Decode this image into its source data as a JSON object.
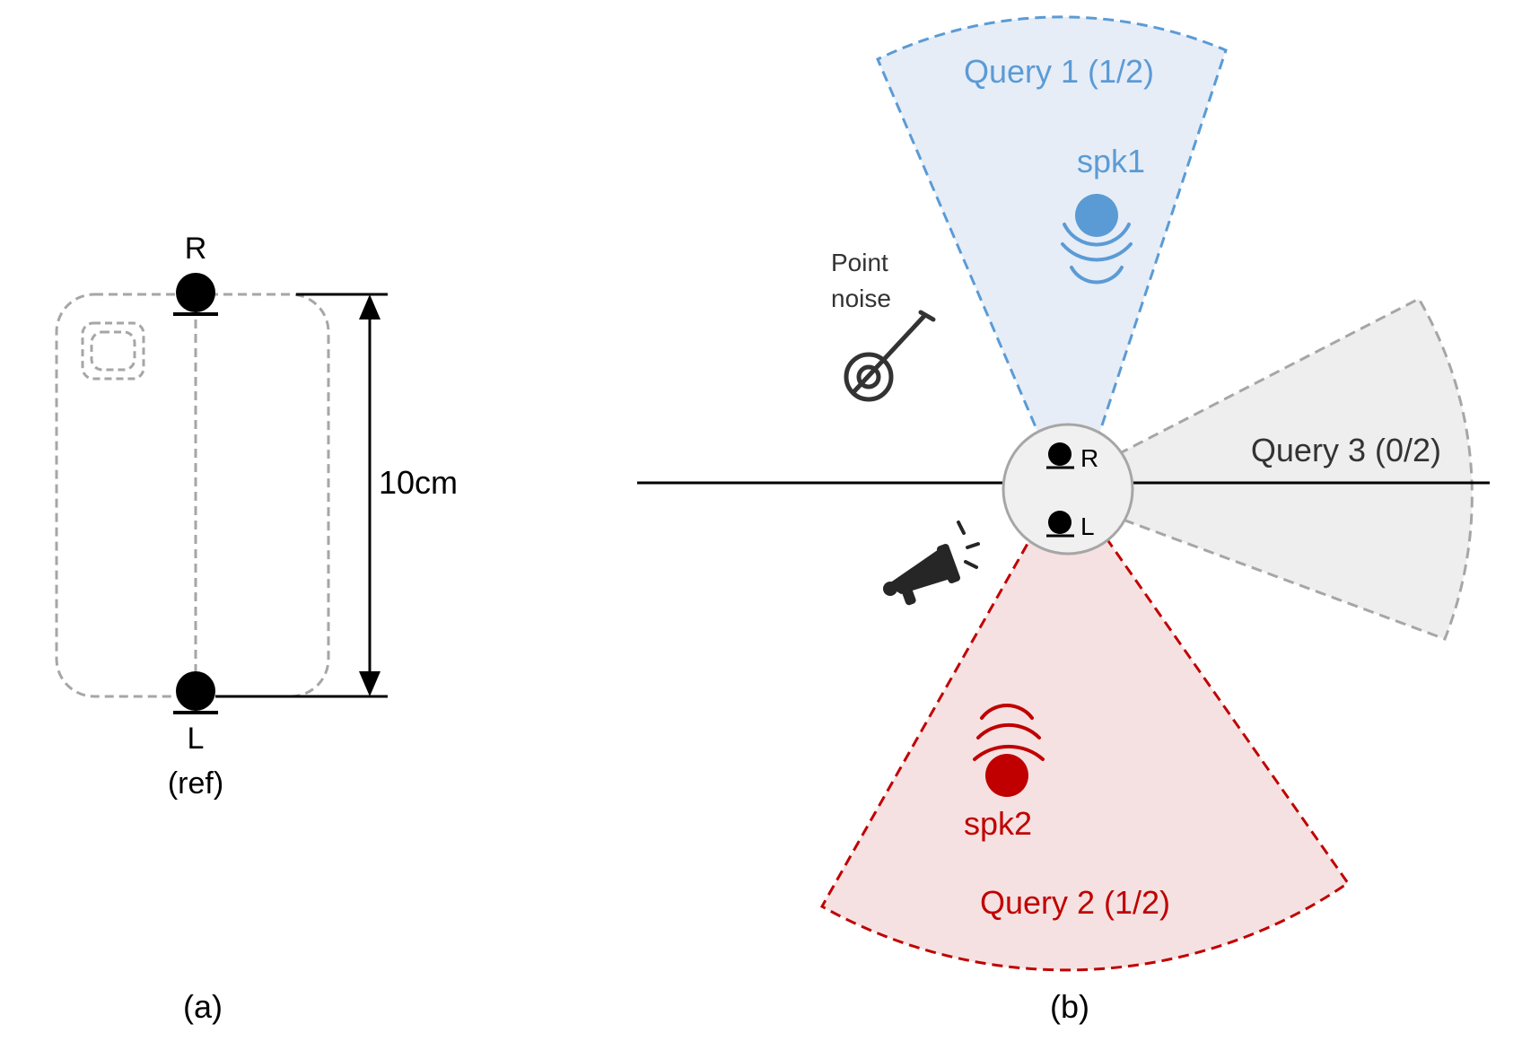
{
  "colors": {
    "blue": "#5b9bd5",
    "blue_fill": "#e6edf7",
    "red": "#c00000",
    "red_fill": "#f5e1e1",
    "gray": "#a6a6a6",
    "gray_fill": "#eeeeee",
    "dark": "#333333",
    "black": "#000000"
  },
  "panel_a": {
    "mic_top_label": "R",
    "mic_bottom_label": "L",
    "ref_label": "(ref)",
    "distance_label": "10cm",
    "caption": "(a)"
  },
  "panel_b": {
    "query1_label": "Query 1 (1/2)",
    "query2_label": "Query 2 (1/2)",
    "query3_label": "Query 3 (0/2)",
    "spk1_label": "spk1",
    "spk2_label": "spk2",
    "noise_label_line1": "Point",
    "noise_label_line2": "noise",
    "mic_r_label": "R",
    "mic_l_label": "L",
    "caption": "(b)",
    "icons": [
      "speaker-source-icon",
      "sound-waves-icon",
      "banjo-icon",
      "megaphone-icon",
      "microphone-icon"
    ]
  }
}
